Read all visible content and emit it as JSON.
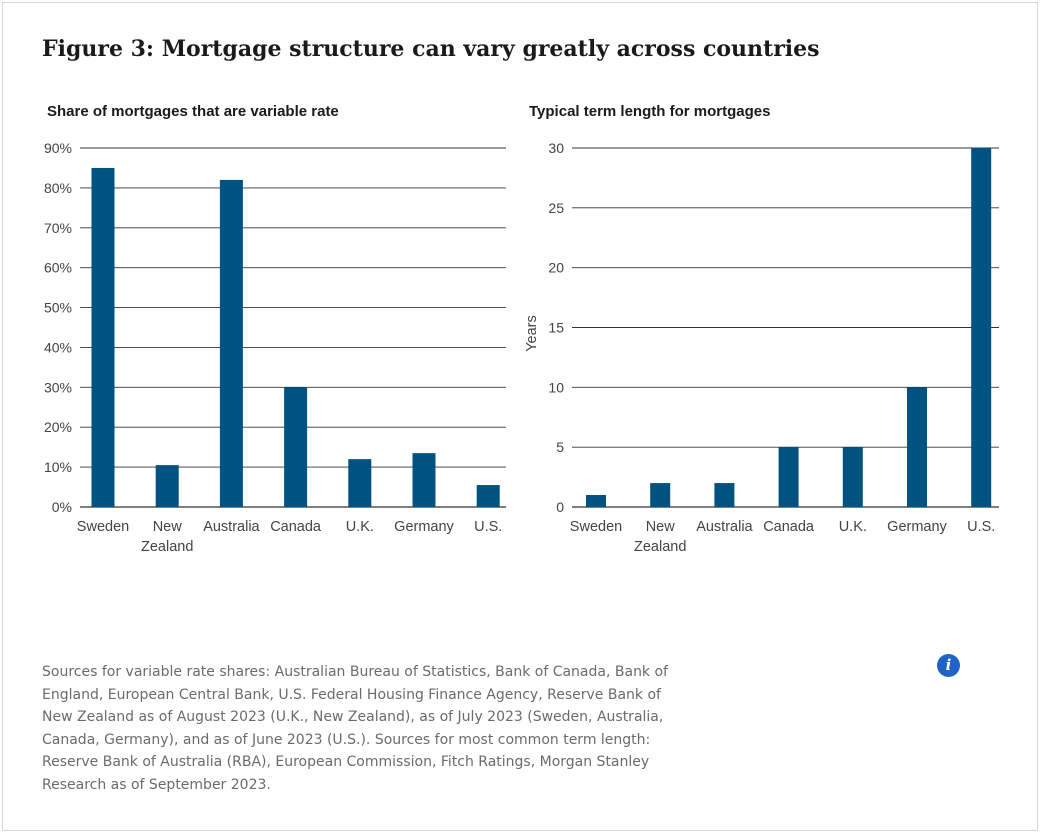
{
  "figure_title": "Figure 3: Mortgage structure can vary greatly across countries",
  "sources": "Sources for variable rate shares: Australian Bureau of Statistics, Bank of Canada, Bank of England, European Central Bank, U.S. Federal Housing Finance Agency, Reserve Bank of New Zealand as of August 2023 (U.K., New Zealand), as of July 2023 (Sweden, Australia, Canada, Germany), and as of June 2023 (U.S.). Sources for most common term length: Reserve Bank of Australia (RBA), European Commission, Fitch Ratings, Morgan Stanley Research as of September 2023.",
  "info_icon": {
    "glyph": "i",
    "icon": "info-icon"
  },
  "colors": {
    "bar": "#005380",
    "grid": "#333333"
  },
  "chart_data": [
    {
      "type": "bar",
      "title": "Share of mortgages that are variable rate",
      "ylabel": "",
      "categories": [
        [
          "Sweden"
        ],
        [
          "New",
          "Zealand"
        ],
        [
          "Australia"
        ],
        [
          "Canada"
        ],
        [
          "U.K."
        ],
        [
          "Germany"
        ],
        [
          "U.S."
        ]
      ],
      "values": [
        85,
        10.5,
        82,
        30,
        12,
        13.5,
        5.5
      ],
      "ylim": [
        0,
        90
      ],
      "yticks": [
        0,
        10,
        20,
        30,
        40,
        50,
        60,
        70,
        80,
        90
      ],
      "ytick_labels": [
        "0%",
        "10%",
        "20%",
        "30%",
        "40%",
        "50%",
        "60%",
        "70%",
        "80%",
        "90%"
      ],
      "grid": true
    },
    {
      "type": "bar",
      "title": "Typical term length for mortgages",
      "ylabel": "Years",
      "categories": [
        [
          "Sweden"
        ],
        [
          "New",
          "Zealand"
        ],
        [
          "Australia"
        ],
        [
          "Canada"
        ],
        [
          "U.K."
        ],
        [
          "Germany"
        ],
        [
          "U.S."
        ]
      ],
      "values": [
        1,
        2,
        2,
        5,
        5,
        10,
        30
      ],
      "ylim": [
        0,
        30
      ],
      "yticks": [
        0,
        5,
        10,
        15,
        20,
        25,
        30
      ],
      "ytick_labels": [
        "0",
        "5",
        "10",
        "15",
        "20",
        "25",
        "30"
      ],
      "grid": true
    }
  ]
}
